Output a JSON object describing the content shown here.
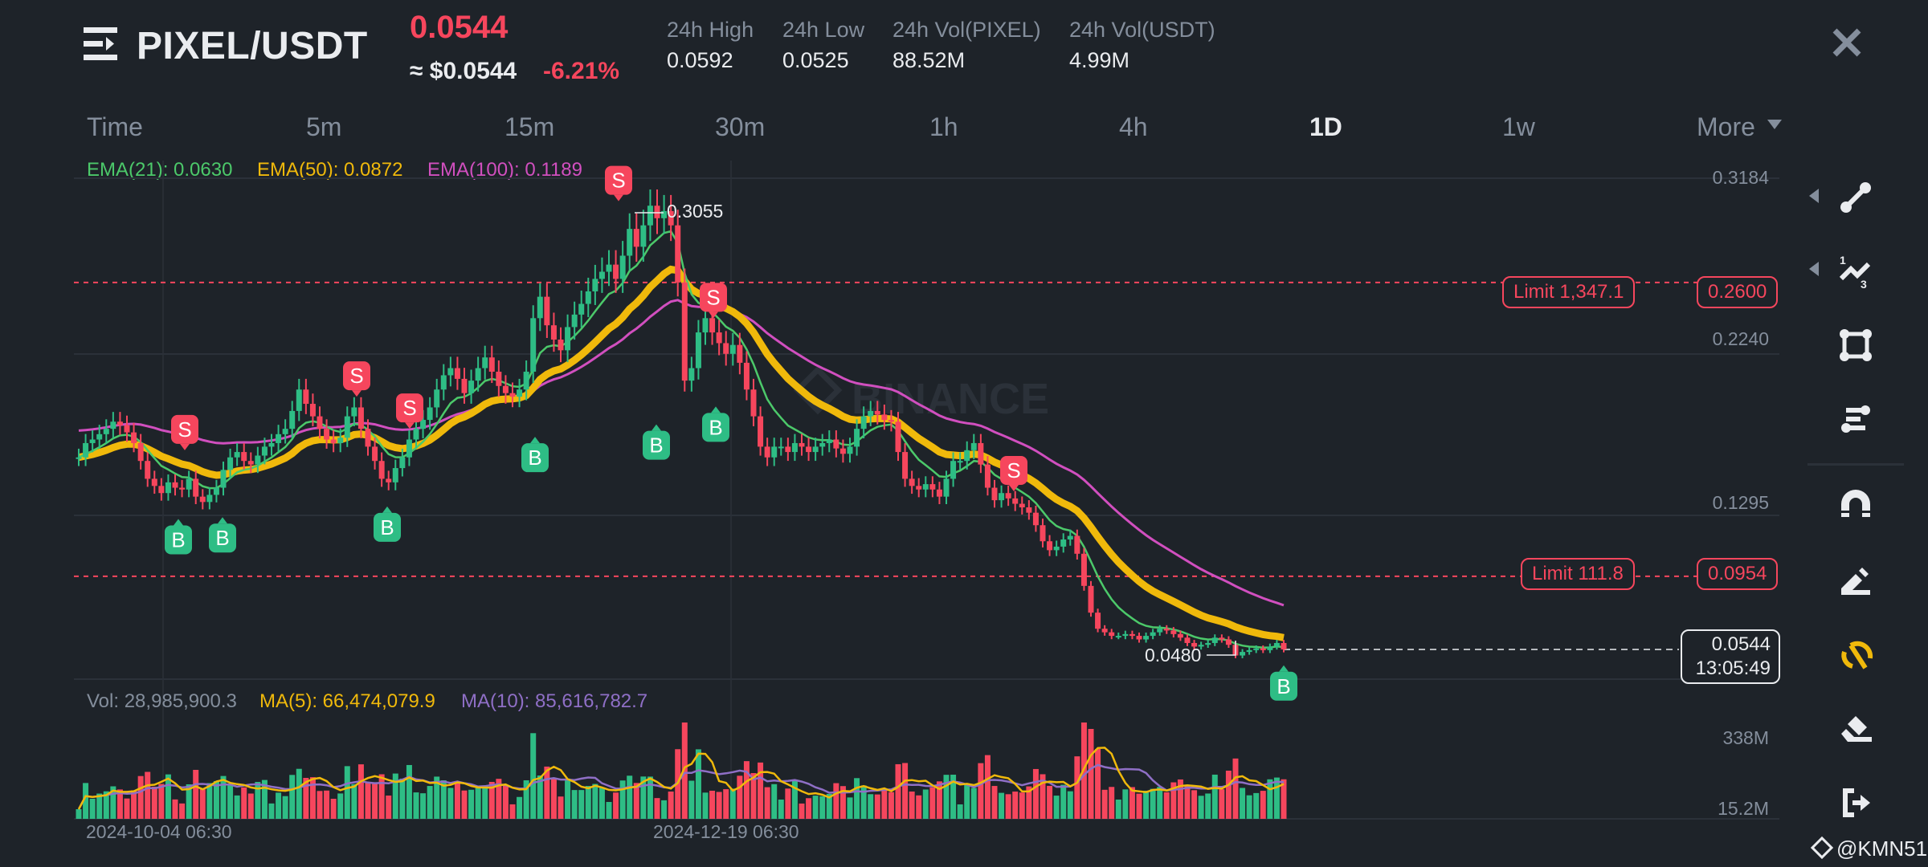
{
  "header": {
    "pair": "PIXEL/USDT",
    "last_price": "0.0544",
    "approx_usd": "≈ $0.0544",
    "change_pct": "-6.21%",
    "stats": [
      {
        "label": "24h High",
        "value": "0.0592"
      },
      {
        "label": "24h Low",
        "value": "0.0525"
      },
      {
        "label": "24h Vol(PIXEL)",
        "value": "88.52M"
      },
      {
        "label": "24h Vol(USDT)",
        "value": "4.99M"
      }
    ],
    "close_icon": "close-icon",
    "menu_icon": "menu-icon"
  },
  "timeframes": {
    "items": [
      "Time",
      "5m",
      "15m",
      "30m",
      "1h",
      "4h",
      "1D",
      "1w",
      "More"
    ],
    "active": "1D"
  },
  "indicators": {
    "ema21": "EMA(21): 0.0630",
    "ema50": "EMA(50): 0.0872",
    "ema100": "EMA(100): 0.1189"
  },
  "volume_legend": {
    "vol": "Vol: 28,985,900.3",
    "ma5": "MA(5): 66,474,079.9",
    "ma10": "MA(10): 85,616,782.7"
  },
  "price_axis": [
    "0.3184",
    "0.2240",
    "0.1295"
  ],
  "volume_axis": [
    "338M",
    "15.2M"
  ],
  "orders": [
    {
      "label": "Limit  1,347.1",
      "price": "0.2600"
    },
    {
      "label": "Limit  111.8",
      "price": "0.0954"
    }
  ],
  "current_price_tag": {
    "price": "0.0544",
    "countdown": "13:05:49"
  },
  "annotations": {
    "high": "0.3055",
    "low": "0.0480"
  },
  "date_labels": [
    "2024-10-04 06:30",
    "2024-12-19 06:30"
  ],
  "watermark": "BINANCE",
  "user_tag": "@KMN51",
  "tools": [
    "trend-line-icon",
    "fibonacci-icon",
    "rectangle-icon",
    "parallel-lines-icon",
    "magnet-icon",
    "pencil-icon",
    "hide-drawings-icon",
    "eraser-icon",
    "exit-icon"
  ],
  "colors": {
    "up": "#2ebd85",
    "down": "#f6465d",
    "ema21": "#4cc96a",
    "ema50": "#f0b90b",
    "ema100": "#d14fbf",
    "ma5": "#f0b90b",
    "ma10": "#8f6fc6",
    "bg": "#1e2329"
  },
  "chart_data": {
    "type": "candlestick",
    "title": "PIXEL/USDT 1D",
    "interval": "1D",
    "ylim": [
      0.04,
      0.33
    ],
    "y_ticks": [
      0.3184,
      0.224,
      0.1295
    ],
    "grid": true,
    "x_labels": [
      "2024-10-04 06:30",
      "2024-12-19 06:30"
    ],
    "closes": [
      0.162,
      0.17,
      0.172,
      0.175,
      0.178,
      0.182,
      0.18,
      0.176,
      0.17,
      0.16,
      0.15,
      0.146,
      0.142,
      0.148,
      0.145,
      0.144,
      0.15,
      0.14,
      0.137,
      0.141,
      0.145,
      0.155,
      0.162,
      0.165,
      0.16,
      0.158,
      0.163,
      0.168,
      0.17,
      0.175,
      0.178,
      0.188,
      0.2,
      0.192,
      0.185,
      0.178,
      0.172,
      0.17,
      0.173,
      0.185,
      0.19,
      0.178,
      0.168,
      0.16,
      0.15,
      0.148,
      0.156,
      0.162,
      0.172,
      0.178,
      0.183,
      0.19,
      0.2,
      0.208,
      0.212,
      0.206,
      0.198,
      0.205,
      0.212,
      0.218,
      0.21,
      0.202,
      0.198,
      0.196,
      0.2,
      0.21,
      0.24,
      0.252,
      0.236,
      0.228,
      0.222,
      0.235,
      0.242,
      0.248,
      0.255,
      0.262,
      0.266,
      0.27,
      0.262,
      0.275,
      0.29,
      0.28,
      0.292,
      0.303,
      0.296,
      0.3,
      0.292,
      0.26,
      0.205,
      0.212,
      0.232,
      0.24,
      0.232,
      0.226,
      0.22,
      0.225,
      0.215,
      0.2,
      0.185,
      0.168,
      0.162,
      0.168,
      0.168,
      0.165,
      0.17,
      0.168,
      0.165,
      0.168,
      0.17,
      0.172,
      0.167,
      0.164,
      0.168,
      0.178,
      0.185,
      0.188,
      0.186,
      0.183,
      0.182,
      0.165,
      0.15,
      0.146,
      0.144,
      0.147,
      0.144,
      0.14,
      0.15,
      0.16,
      0.16,
      0.166,
      0.17,
      0.158,
      0.145,
      0.138,
      0.142,
      0.139,
      0.136,
      0.134,
      0.131,
      0.124,
      0.115,
      0.11,
      0.112,
      0.116,
      0.118,
      0.108,
      0.09,
      0.075,
      0.066,
      0.064,
      0.062,
      0.062,
      0.063,
      0.062,
      0.06,
      0.062,
      0.064,
      0.066,
      0.065,
      0.063,
      0.061,
      0.058,
      0.056,
      0.057,
      0.058,
      0.061,
      0.06,
      0.057,
      0.051,
      0.053,
      0.054,
      0.055,
      0.054,
      0.056,
      0.058,
      0.0544
    ],
    "signals": [
      {
        "type": "S",
        "price": 0.166
      },
      {
        "type": "B",
        "price": 0.132
      },
      {
        "type": "B",
        "price": 0.133
      },
      {
        "type": "S",
        "price": 0.196
      },
      {
        "type": "S",
        "price": 0.178
      },
      {
        "type": "B",
        "price": 0.139
      },
      {
        "type": "B",
        "price": 0.178
      },
      {
        "type": "S",
        "price": 0.3055
      },
      {
        "type": "B",
        "price": 0.185
      },
      {
        "type": "S",
        "price": 0.24
      },
      {
        "type": "B",
        "price": 0.195
      },
      {
        "type": "S",
        "price": 0.143
      },
      {
        "type": "B",
        "price": 0.05
      }
    ],
    "ema21_last": 0.063,
    "ema50_last": 0.0872,
    "ema100_last": 0.1189,
    "volume_ylim": [
      15.2,
      338
    ],
    "volume_unit": "M",
    "volume_last": 28985900.3,
    "vol_ma5_last": 66474079.9,
    "vol_ma10_last": 85616782.7,
    "horizontal_lines": [
      {
        "price": 0.26,
        "label": "Limit 1,347.1"
      },
      {
        "price": 0.0954,
        "label": "Limit 111.8"
      }
    ],
    "current_price": 0.0544,
    "period_high": 0.3055,
    "period_low": 0.048
  }
}
